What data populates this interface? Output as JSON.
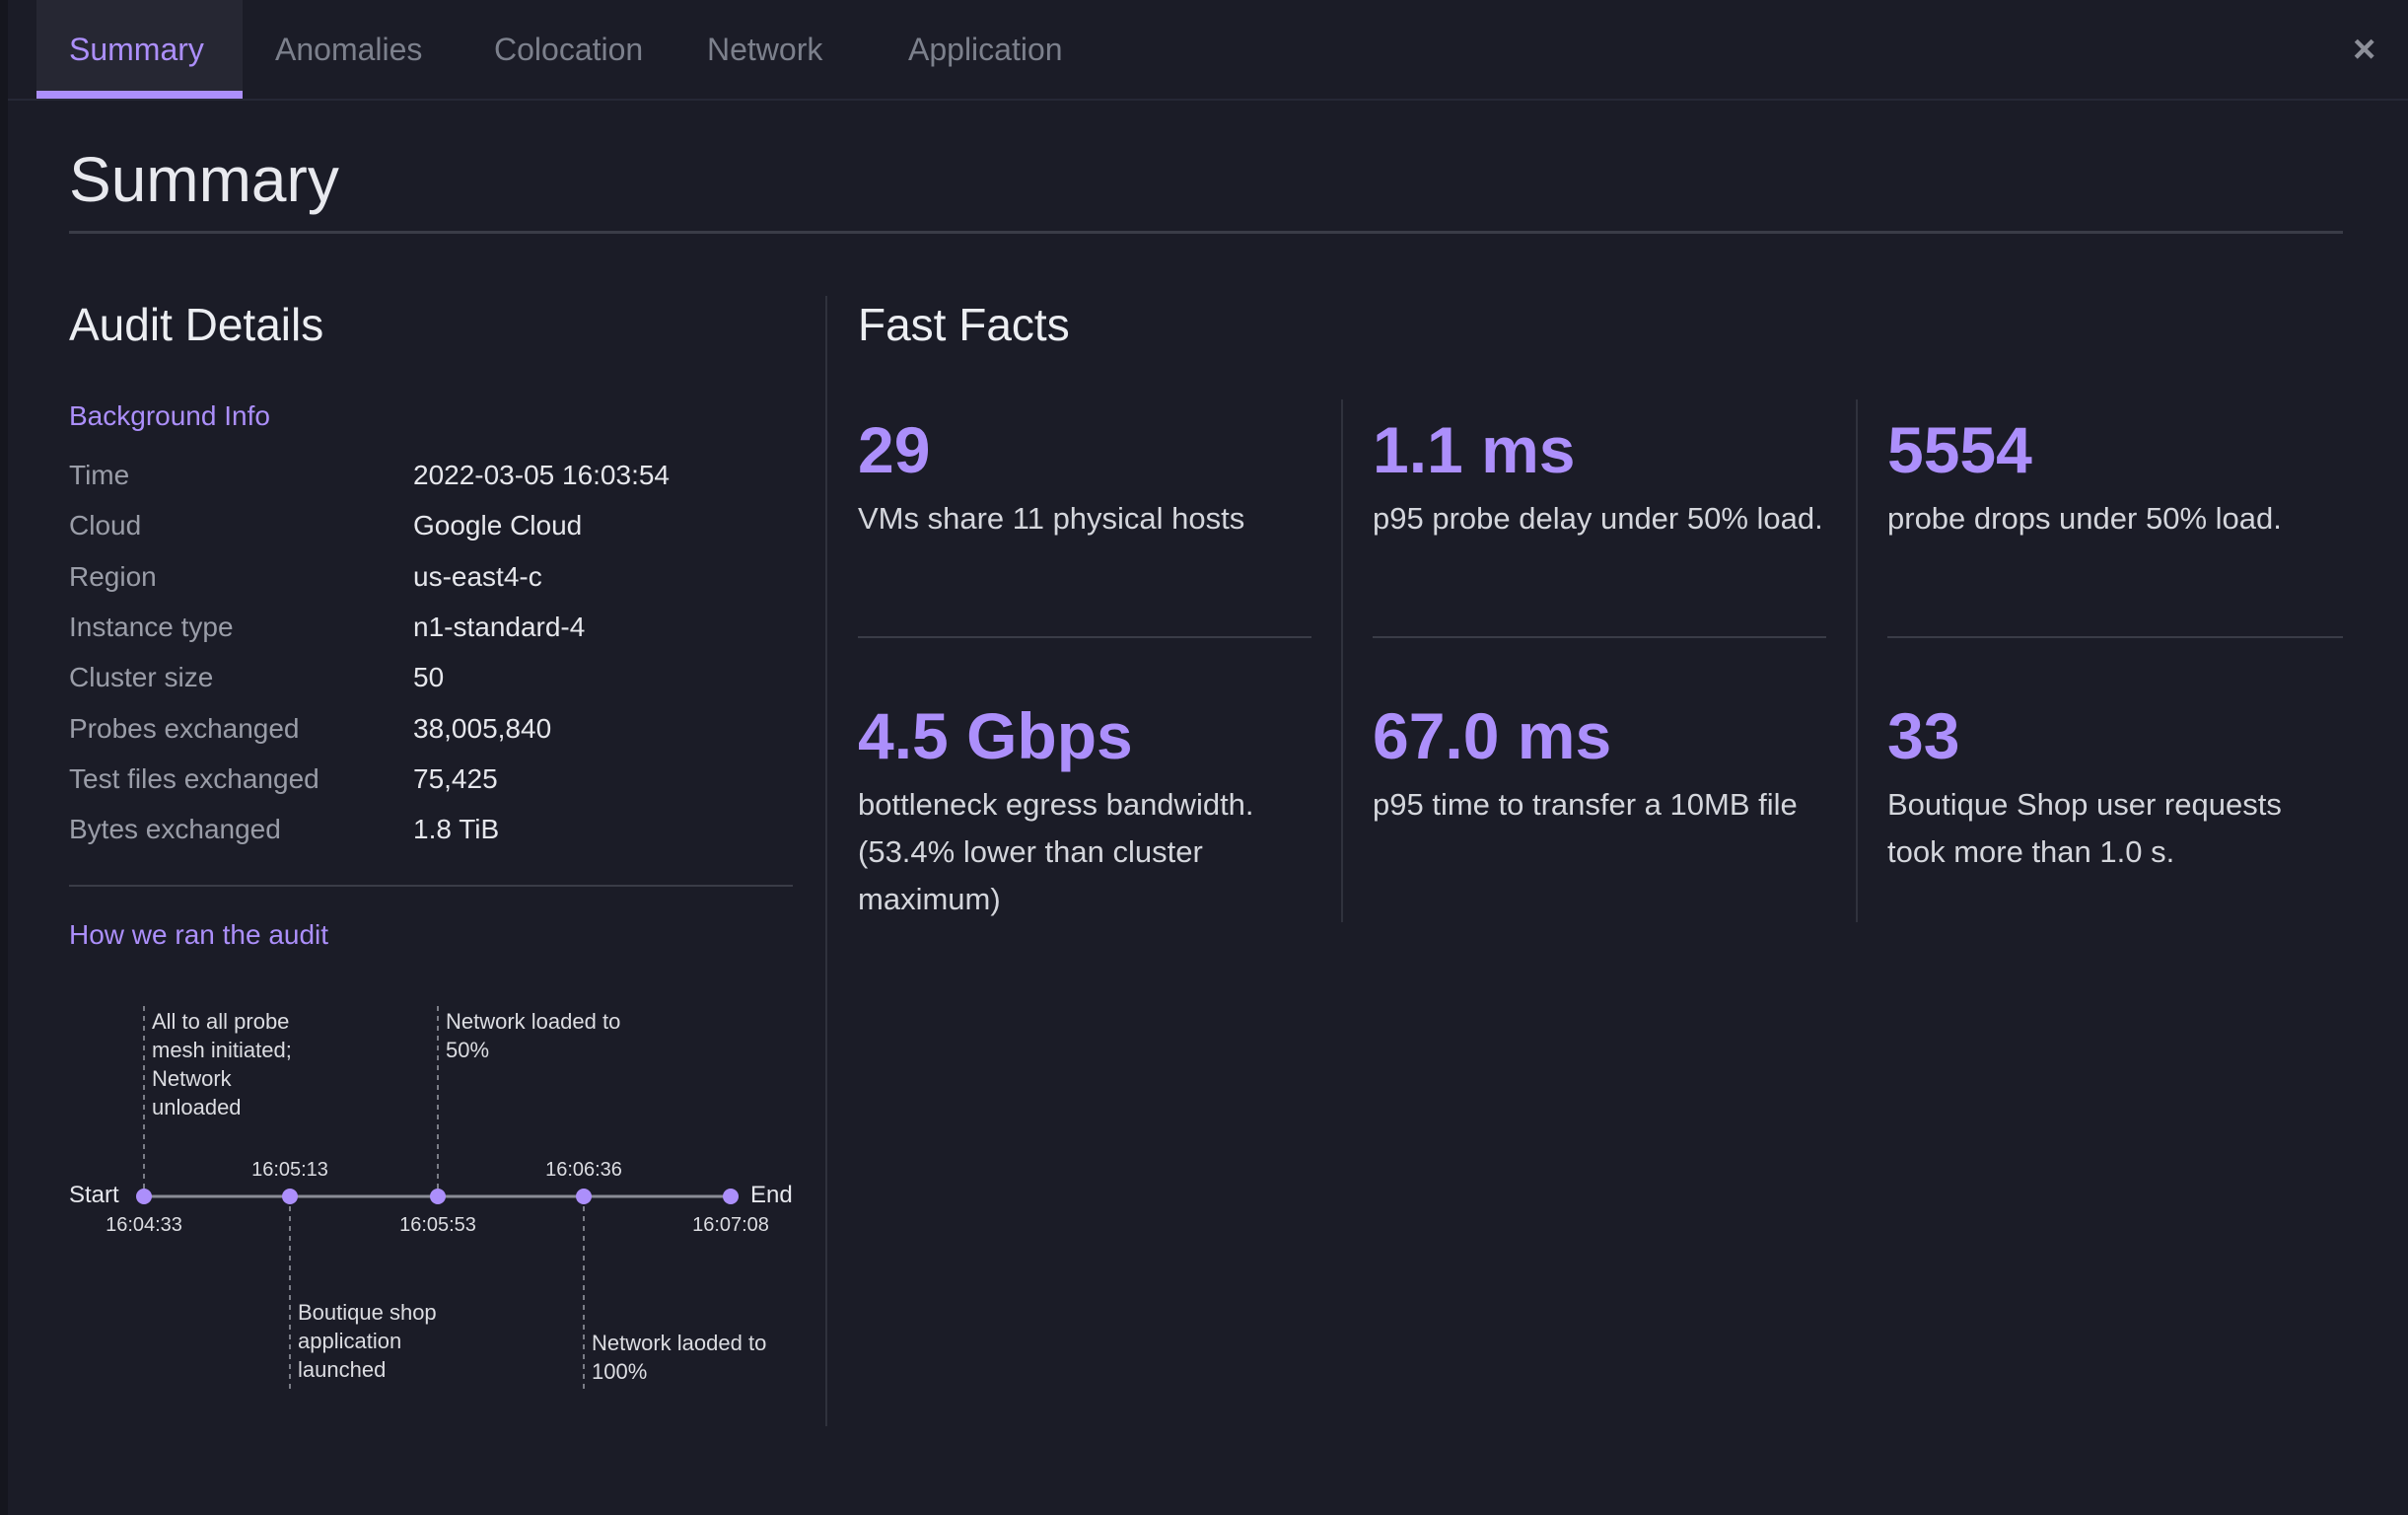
{
  "tabs": [
    {
      "label": "Summary",
      "active": true
    },
    {
      "label": "Anomalies"
    },
    {
      "label": "Colocation"
    },
    {
      "label": "Network"
    },
    {
      "label": "Application"
    }
  ],
  "close_icon": "×",
  "page_title": "Summary",
  "audit": {
    "title": "Audit Details",
    "background_title": "Background Info",
    "rows": [
      {
        "label": "Time",
        "value": "2022-03-05 16:03:54"
      },
      {
        "label": "Cloud",
        "value": "Google Cloud"
      },
      {
        "label": "Region",
        "value": "us-east4-c"
      },
      {
        "label": "Instance type",
        "value": "n1-standard-4"
      },
      {
        "label": "Cluster size",
        "value": "50"
      },
      {
        "label": "Probes exchanged",
        "value": "38,005,840"
      },
      {
        "label": "Test files exchanged",
        "value": "75,425"
      },
      {
        "label": "Bytes exchanged",
        "value": "1.8 TiB"
      }
    ],
    "how_title": "How we ran the audit",
    "timeline": {
      "start_label": "Start",
      "end_label": "End",
      "times": [
        "16:04:33",
        "16:05:13",
        "16:05:53",
        "16:06:36",
        "16:07:08"
      ],
      "events": [
        "All to all probe mesh initiated; Network unloaded",
        "Boutique shop application launched",
        "Network loaded to 50%",
        "Network laoded to 100%"
      ]
    }
  },
  "facts": {
    "title": "Fast Facts",
    "items": [
      {
        "value": "29",
        "text": "VMs share 11 physical hosts"
      },
      {
        "value": "1.1 ms",
        "text": "p95 probe delay under 50% load."
      },
      {
        "value": "5554",
        "text": "probe drops under 50% load."
      },
      {
        "value": "4.5 Gbps",
        "text": "bottleneck egress bandwidth. (53.4% lower than cluster maximum)"
      },
      {
        "value": "67.0 ms",
        "text": "p95 time to transfer a 10MB file"
      },
      {
        "value": "33",
        "text": "Boutique Shop user requests took more than 1.0 s."
      }
    ]
  },
  "colors": {
    "accent": "#ac8ffb",
    "background": "#1b1c27"
  }
}
